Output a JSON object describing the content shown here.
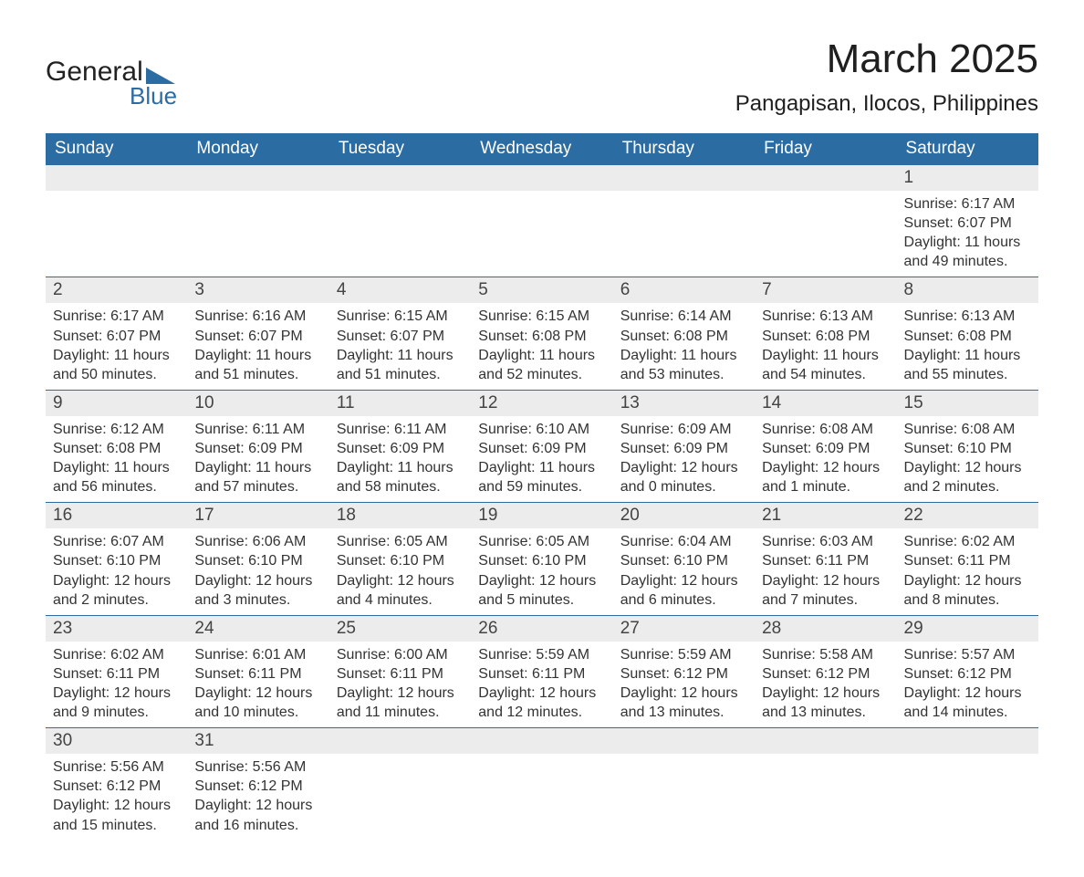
{
  "logo": {
    "text1": "General",
    "text2": "Blue",
    "tri_color": "#2b6ca3"
  },
  "title": "March 2025",
  "location": "Pangapisan, Ilocos, Philippines",
  "colors": {
    "header_bg": "#2b6ca3",
    "header_text": "#ffffff",
    "date_bar_bg": "#ececec",
    "date_bar_text": "#444444",
    "body_text": "#333333",
    "row_divider": "#2b6ca3",
    "background": "#ffffff"
  },
  "typography": {
    "title_fontsize": 44,
    "location_fontsize": 24,
    "header_fontsize": 19,
    "date_fontsize": 19,
    "body_fontsize": 16
  },
  "day_headers": [
    "Sunday",
    "Monday",
    "Tuesday",
    "Wednesday",
    "Thursday",
    "Friday",
    "Saturday"
  ],
  "weeks": [
    [
      null,
      null,
      null,
      null,
      null,
      null,
      {
        "date": "1",
        "sunrise": "Sunrise: 6:17 AM",
        "sunset": "Sunset: 6:07 PM",
        "daylight": "Daylight: 11 hours and 49 minutes."
      }
    ],
    [
      {
        "date": "2",
        "sunrise": "Sunrise: 6:17 AM",
        "sunset": "Sunset: 6:07 PM",
        "daylight": "Daylight: 11 hours and 50 minutes."
      },
      {
        "date": "3",
        "sunrise": "Sunrise: 6:16 AM",
        "sunset": "Sunset: 6:07 PM",
        "daylight": "Daylight: 11 hours and 51 minutes."
      },
      {
        "date": "4",
        "sunrise": "Sunrise: 6:15 AM",
        "sunset": "Sunset: 6:07 PM",
        "daylight": "Daylight: 11 hours and 51 minutes."
      },
      {
        "date": "5",
        "sunrise": "Sunrise: 6:15 AM",
        "sunset": "Sunset: 6:08 PM",
        "daylight": "Daylight: 11 hours and 52 minutes."
      },
      {
        "date": "6",
        "sunrise": "Sunrise: 6:14 AM",
        "sunset": "Sunset: 6:08 PM",
        "daylight": "Daylight: 11 hours and 53 minutes."
      },
      {
        "date": "7",
        "sunrise": "Sunrise: 6:13 AM",
        "sunset": "Sunset: 6:08 PM",
        "daylight": "Daylight: 11 hours and 54 minutes."
      },
      {
        "date": "8",
        "sunrise": "Sunrise: 6:13 AM",
        "sunset": "Sunset: 6:08 PM",
        "daylight": "Daylight: 11 hours and 55 minutes."
      }
    ],
    [
      {
        "date": "9",
        "sunrise": "Sunrise: 6:12 AM",
        "sunset": "Sunset: 6:08 PM",
        "daylight": "Daylight: 11 hours and 56 minutes."
      },
      {
        "date": "10",
        "sunrise": "Sunrise: 6:11 AM",
        "sunset": "Sunset: 6:09 PM",
        "daylight": "Daylight: 11 hours and 57 minutes."
      },
      {
        "date": "11",
        "sunrise": "Sunrise: 6:11 AM",
        "sunset": "Sunset: 6:09 PM",
        "daylight": "Daylight: 11 hours and 58 minutes."
      },
      {
        "date": "12",
        "sunrise": "Sunrise: 6:10 AM",
        "sunset": "Sunset: 6:09 PM",
        "daylight": "Daylight: 11 hours and 59 minutes."
      },
      {
        "date": "13",
        "sunrise": "Sunrise: 6:09 AM",
        "sunset": "Sunset: 6:09 PM",
        "daylight": "Daylight: 12 hours and 0 minutes."
      },
      {
        "date": "14",
        "sunrise": "Sunrise: 6:08 AM",
        "sunset": "Sunset: 6:09 PM",
        "daylight": "Daylight: 12 hours and 1 minute."
      },
      {
        "date": "15",
        "sunrise": "Sunrise: 6:08 AM",
        "sunset": "Sunset: 6:10 PM",
        "daylight": "Daylight: 12 hours and 2 minutes."
      }
    ],
    [
      {
        "date": "16",
        "sunrise": "Sunrise: 6:07 AM",
        "sunset": "Sunset: 6:10 PM",
        "daylight": "Daylight: 12 hours and 2 minutes."
      },
      {
        "date": "17",
        "sunrise": "Sunrise: 6:06 AM",
        "sunset": "Sunset: 6:10 PM",
        "daylight": "Daylight: 12 hours and 3 minutes."
      },
      {
        "date": "18",
        "sunrise": "Sunrise: 6:05 AM",
        "sunset": "Sunset: 6:10 PM",
        "daylight": "Daylight: 12 hours and 4 minutes."
      },
      {
        "date": "19",
        "sunrise": "Sunrise: 6:05 AM",
        "sunset": "Sunset: 6:10 PM",
        "daylight": "Daylight: 12 hours and 5 minutes."
      },
      {
        "date": "20",
        "sunrise": "Sunrise: 6:04 AM",
        "sunset": "Sunset: 6:10 PM",
        "daylight": "Daylight: 12 hours and 6 minutes."
      },
      {
        "date": "21",
        "sunrise": "Sunrise: 6:03 AM",
        "sunset": "Sunset: 6:11 PM",
        "daylight": "Daylight: 12 hours and 7 minutes."
      },
      {
        "date": "22",
        "sunrise": "Sunrise: 6:02 AM",
        "sunset": "Sunset: 6:11 PM",
        "daylight": "Daylight: 12 hours and 8 minutes."
      }
    ],
    [
      {
        "date": "23",
        "sunrise": "Sunrise: 6:02 AM",
        "sunset": "Sunset: 6:11 PM",
        "daylight": "Daylight: 12 hours and 9 minutes."
      },
      {
        "date": "24",
        "sunrise": "Sunrise: 6:01 AM",
        "sunset": "Sunset: 6:11 PM",
        "daylight": "Daylight: 12 hours and 10 minutes."
      },
      {
        "date": "25",
        "sunrise": "Sunrise: 6:00 AM",
        "sunset": "Sunset: 6:11 PM",
        "daylight": "Daylight: 12 hours and 11 minutes."
      },
      {
        "date": "26",
        "sunrise": "Sunrise: 5:59 AM",
        "sunset": "Sunset: 6:11 PM",
        "daylight": "Daylight: 12 hours and 12 minutes."
      },
      {
        "date": "27",
        "sunrise": "Sunrise: 5:59 AM",
        "sunset": "Sunset: 6:12 PM",
        "daylight": "Daylight: 12 hours and 13 minutes."
      },
      {
        "date": "28",
        "sunrise": "Sunrise: 5:58 AM",
        "sunset": "Sunset: 6:12 PM",
        "daylight": "Daylight: 12 hours and 13 minutes."
      },
      {
        "date": "29",
        "sunrise": "Sunrise: 5:57 AM",
        "sunset": "Sunset: 6:12 PM",
        "daylight": "Daylight: 12 hours and 14 minutes."
      }
    ],
    [
      {
        "date": "30",
        "sunrise": "Sunrise: 5:56 AM",
        "sunset": "Sunset: 6:12 PM",
        "daylight": "Daylight: 12 hours and 15 minutes."
      },
      {
        "date": "31",
        "sunrise": "Sunrise: 5:56 AM",
        "sunset": "Sunset: 6:12 PM",
        "daylight": "Daylight: 12 hours and 16 minutes."
      },
      null,
      null,
      null,
      null,
      null
    ]
  ]
}
